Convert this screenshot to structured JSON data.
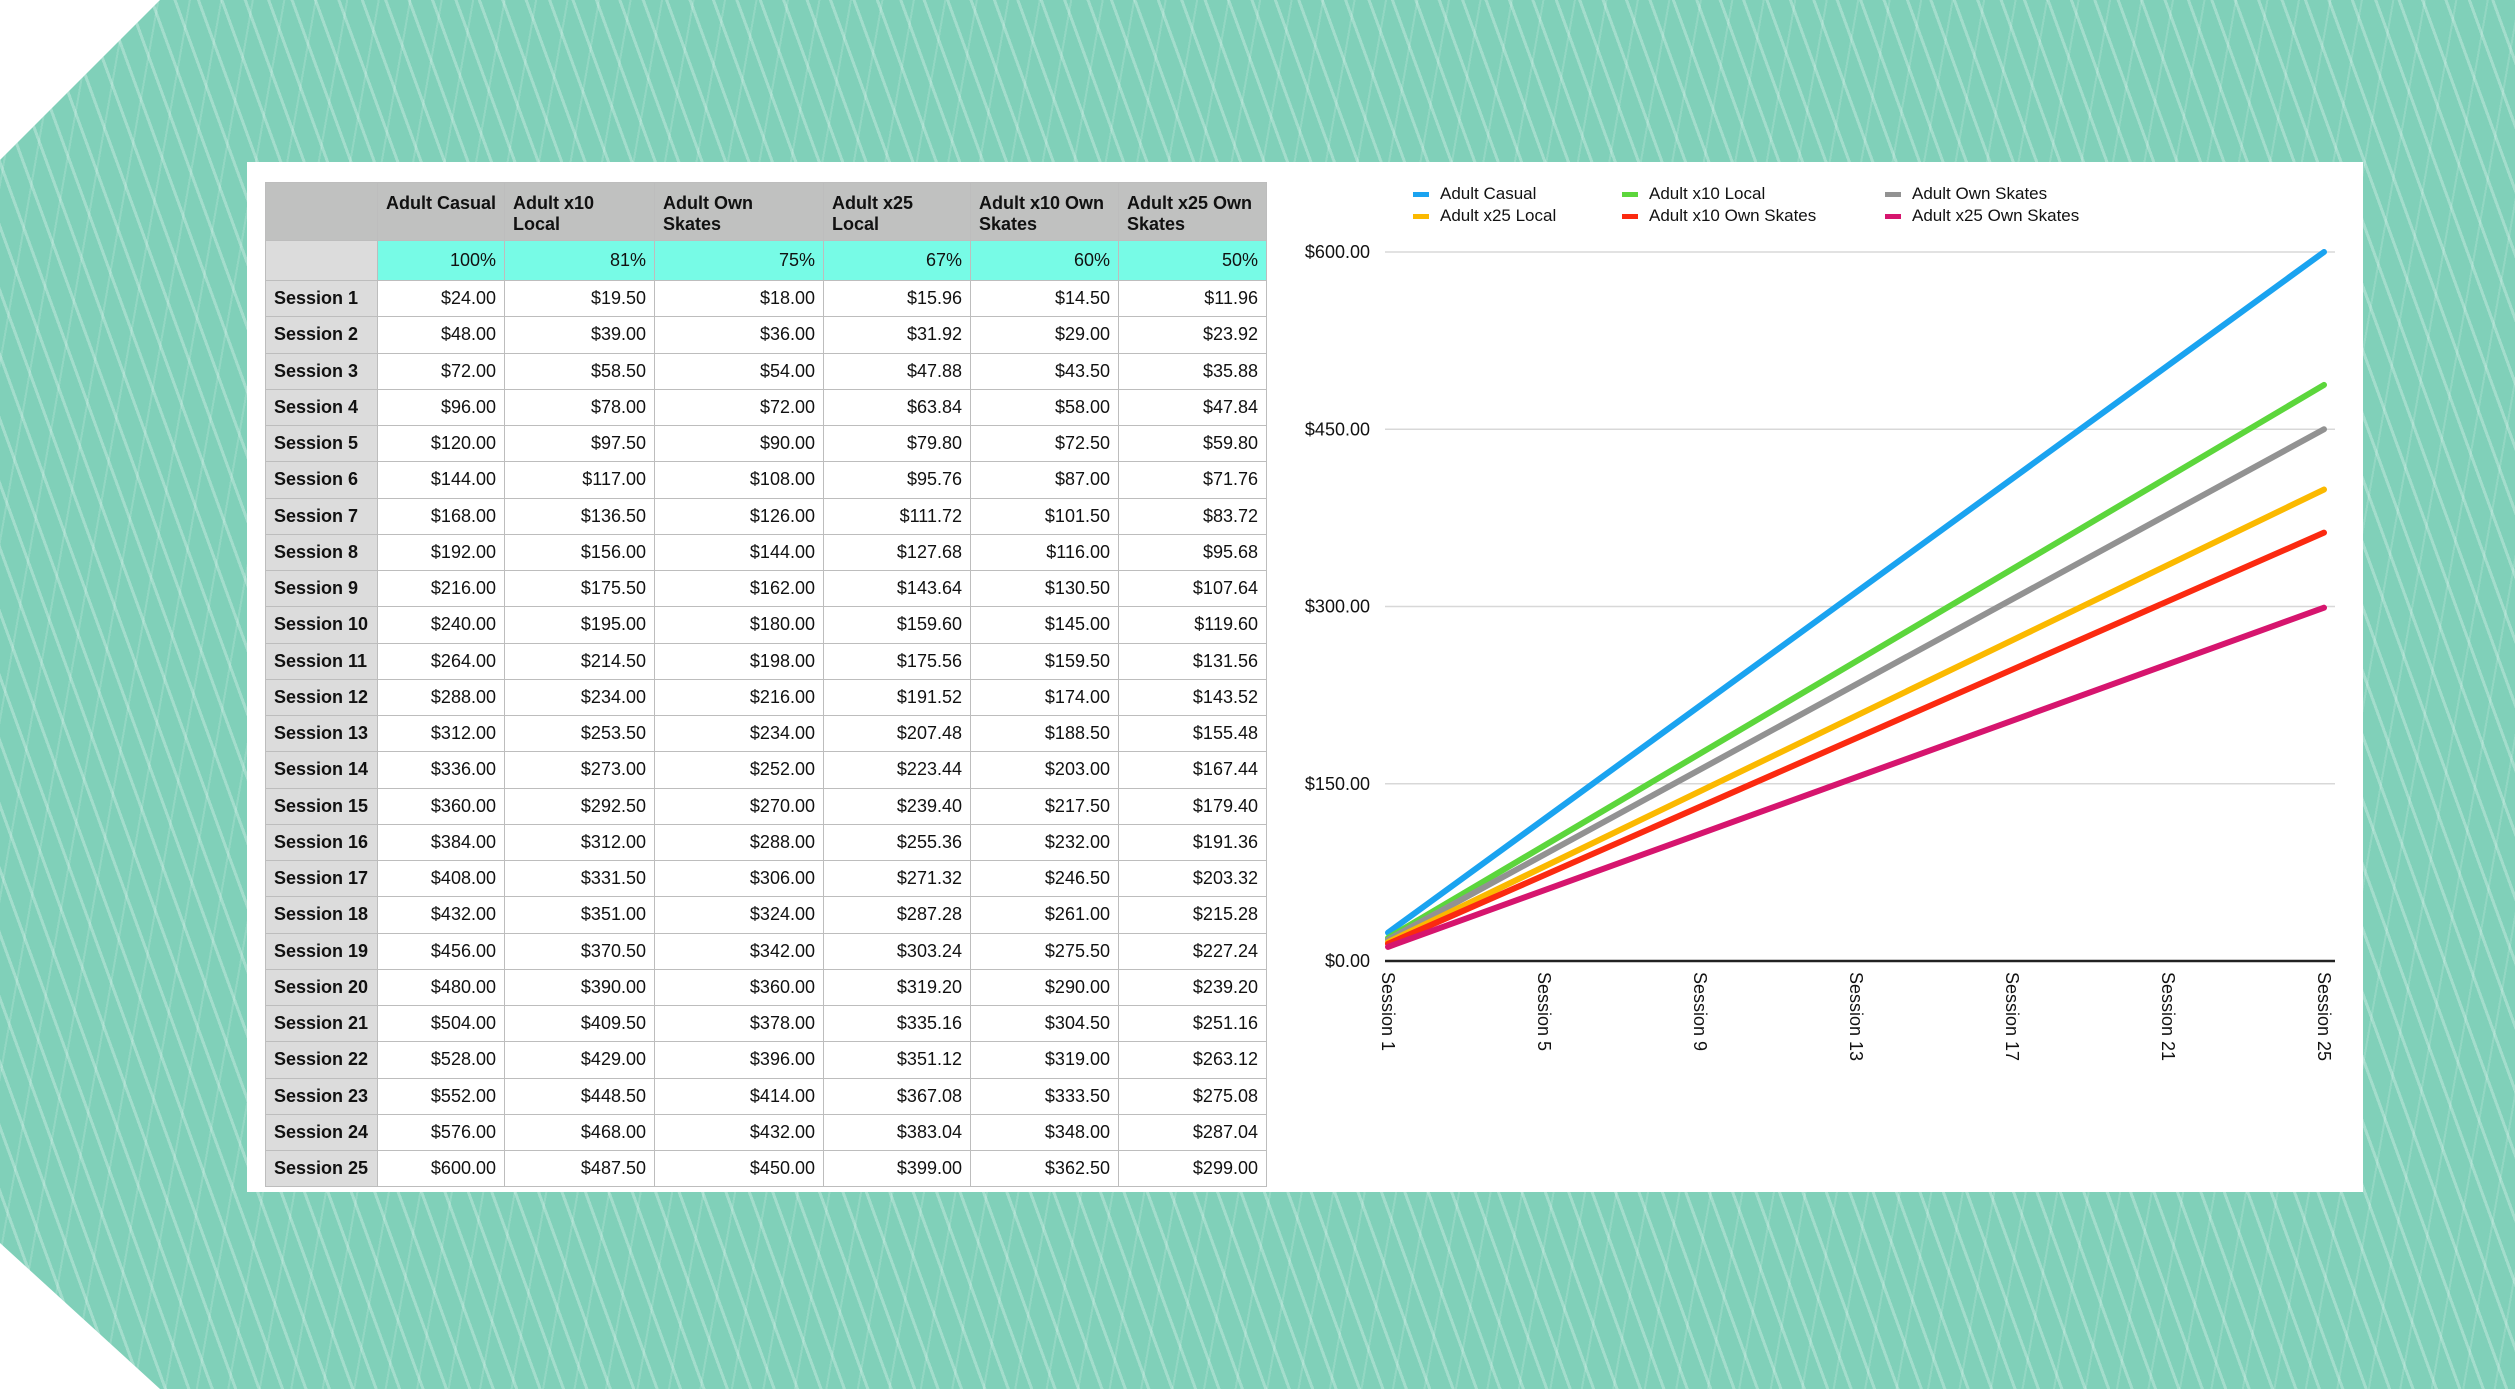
{
  "table": {
    "headers": [
      "",
      "Adult Casual",
      "Adult x10 Local",
      "Adult Own Skates",
      "Adult x25 Local",
      "Adult x10 Own Skates",
      "Adult x25 Own Skates"
    ],
    "percent_row": [
      "100%",
      "81%",
      "75%",
      "67%",
      "60%",
      "50%"
    ],
    "rows": [
      [
        "Session 1",
        "$24.00",
        "$19.50",
        "$18.00",
        "$15.96",
        "$14.50",
        "$11.96"
      ],
      [
        "Session 2",
        "$48.00",
        "$39.00",
        "$36.00",
        "$31.92",
        "$29.00",
        "$23.92"
      ],
      [
        "Session 3",
        "$72.00",
        "$58.50",
        "$54.00",
        "$47.88",
        "$43.50",
        "$35.88"
      ],
      [
        "Session 4",
        "$96.00",
        "$78.00",
        "$72.00",
        "$63.84",
        "$58.00",
        "$47.84"
      ],
      [
        "Session 5",
        "$120.00",
        "$97.50",
        "$90.00",
        "$79.80",
        "$72.50",
        "$59.80"
      ],
      [
        "Session 6",
        "$144.00",
        "$117.00",
        "$108.00",
        "$95.76",
        "$87.00",
        "$71.76"
      ],
      [
        "Session 7",
        "$168.00",
        "$136.50",
        "$126.00",
        "$111.72",
        "$101.50",
        "$83.72"
      ],
      [
        "Session 8",
        "$192.00",
        "$156.00",
        "$144.00",
        "$127.68",
        "$116.00",
        "$95.68"
      ],
      [
        "Session 9",
        "$216.00",
        "$175.50",
        "$162.00",
        "$143.64",
        "$130.50",
        "$107.64"
      ],
      [
        "Session 10",
        "$240.00",
        "$195.00",
        "$180.00",
        "$159.60",
        "$145.00",
        "$119.60"
      ],
      [
        "Session 11",
        "$264.00",
        "$214.50",
        "$198.00",
        "$175.56",
        "$159.50",
        "$131.56"
      ],
      [
        "Session 12",
        "$288.00",
        "$234.00",
        "$216.00",
        "$191.52",
        "$174.00",
        "$143.52"
      ],
      [
        "Session 13",
        "$312.00",
        "$253.50",
        "$234.00",
        "$207.48",
        "$188.50",
        "$155.48"
      ],
      [
        "Session 14",
        "$336.00",
        "$273.00",
        "$252.00",
        "$223.44",
        "$203.00",
        "$167.44"
      ],
      [
        "Session 15",
        "$360.00",
        "$292.50",
        "$270.00",
        "$239.40",
        "$217.50",
        "$179.40"
      ],
      [
        "Session 16",
        "$384.00",
        "$312.00",
        "$288.00",
        "$255.36",
        "$232.00",
        "$191.36"
      ],
      [
        "Session 17",
        "$408.00",
        "$331.50",
        "$306.00",
        "$271.32",
        "$246.50",
        "$203.32"
      ],
      [
        "Session 18",
        "$432.00",
        "$351.00",
        "$324.00",
        "$287.28",
        "$261.00",
        "$215.28"
      ],
      [
        "Session 19",
        "$456.00",
        "$370.50",
        "$342.00",
        "$303.24",
        "$275.50",
        "$227.24"
      ],
      [
        "Session 20",
        "$480.00",
        "$390.00",
        "$360.00",
        "$319.20",
        "$290.00",
        "$239.20"
      ],
      [
        "Session 21",
        "$504.00",
        "$409.50",
        "$378.00",
        "$335.16",
        "$304.50",
        "$251.16"
      ],
      [
        "Session 22",
        "$528.00",
        "$429.00",
        "$396.00",
        "$351.12",
        "$319.00",
        "$263.12"
      ],
      [
        "Session 23",
        "$552.00",
        "$448.50",
        "$414.00",
        "$367.08",
        "$333.50",
        "$275.08"
      ],
      [
        "Session 24",
        "$576.00",
        "$468.00",
        "$432.00",
        "$383.04",
        "$348.00",
        "$287.04"
      ],
      [
        "Session 25",
        "$600.00",
        "$487.50",
        "$450.00",
        "$399.00",
        "$362.50",
        "$299.00"
      ]
    ]
  },
  "chart_data": {
    "type": "line",
    "x_tick_labels": [
      "Session 1",
      "Session 5",
      "Session 9",
      "Session 13",
      "Session 17",
      "Session 21",
      "Session 25"
    ],
    "y_tick_labels": [
      "$0.00",
      "$150.00",
      "$300.00",
      "$450.00",
      "$600.00"
    ],
    "ylim": [
      0,
      600
    ],
    "grid": true,
    "legend_position": "top",
    "x_count": 25,
    "series": [
      {
        "name": "Adult Casual",
        "color": "#1aa3f0",
        "per_session": 24.0
      },
      {
        "name": "Adult x10 Local",
        "color": "#5cd63c",
        "per_session": 19.5
      },
      {
        "name": "Adult Own Skates",
        "color": "#929292",
        "per_session": 18.0
      },
      {
        "name": "Adult x25 Local",
        "color": "#fbb900",
        "per_session": 15.96
      },
      {
        "name": "Adult x10 Own Skates",
        "color": "#fb2a10",
        "per_session": 14.5
      },
      {
        "name": "Adult x25 Own Skates",
        "color": "#d6156e",
        "per_session": 11.96
      }
    ]
  }
}
